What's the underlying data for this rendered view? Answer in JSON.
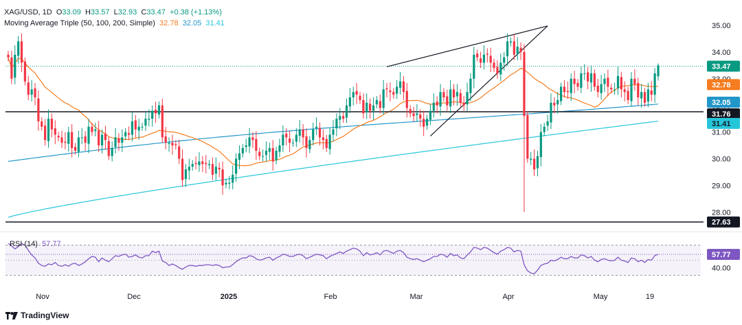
{
  "header": {
    "symbol": "XAG/USD, 1D",
    "o_label": "O",
    "o_val": "33.09",
    "h_label": "H",
    "h_val": "33.57",
    "l_label": "L",
    "l_val": "32.93",
    "c_label": "C",
    "c_val": "33.47",
    "change": "+0.38 (+1.13%)",
    "ma_label": "Moving Average Triple (50, 100, 200, Simple)",
    "ma50_val": "32.78",
    "ma100_val": "32.05",
    "ma200_val": "31.41"
  },
  "rsi_header": {
    "label": "RSI (14)",
    "value": "57.77"
  },
  "branding": {
    "name": "TradingView"
  },
  "colors": {
    "up": "#089981",
    "down": "#f23645",
    "ma50": "#f57c1f",
    "ma100": "#2196c9",
    "ma200": "#26c6da",
    "rsi": "#7e57c2",
    "last_price": "#089981",
    "support": "#131722"
  },
  "chart_data": [
    {
      "type": "candlestick",
      "title": "XAG/USD, 1D",
      "y_ticks": [
        "35.00",
        "34.00",
        "33.00",
        "32.00",
        "31.00",
        "30.00",
        "29.00",
        "28.00"
      ],
      "ylim": [
        27.3,
        35.4
      ],
      "x_ticks": [
        "Nov",
        "Dec",
        "2025",
        "Feb",
        "Mar",
        "Apr",
        "May",
        "19"
      ],
      "price_labels": [
        {
          "text": "33.47",
          "value": 33.47,
          "kind": "last"
        },
        {
          "text": "32.78",
          "value": 32.78,
          "kind": "ma50"
        },
        {
          "text": "32.05",
          "value": 32.05,
          "kind": "ma100"
        },
        {
          "text": "31.76",
          "value": 31.76,
          "kind": "level"
        },
        {
          "text": "31.41",
          "value": 31.41,
          "kind": "ma200"
        },
        {
          "text": "27.63",
          "value": 27.63,
          "kind": "level"
        }
      ],
      "horizontal_levels": [
        31.76,
        27.63
      ],
      "last_price": 33.47,
      "closes": [
        33.8,
        33.0,
        33.9,
        34.4,
        33.6,
        32.9,
        32.4,
        32.6,
        32.3,
        31.4,
        31.2,
        30.7,
        31.5,
        31.1,
        30.9,
        30.8,
        30.6,
        30.6,
        31.0,
        30.4,
        30.3,
        30.8,
        30.8,
        30.6,
        31.2,
        31.0,
        31.1,
        30.5,
        30.9,
        30.7,
        30.1,
        30.4,
        30.8,
        30.6,
        30.8,
        31.0,
        30.9,
        31.4,
        31.1,
        31.2,
        31.2,
        31.5,
        31.5,
        31.8,
        31.7,
        32.0,
        30.8,
        30.6,
        30.6,
        30.5,
        30.5,
        30.0,
        29.2,
        29.6,
        29.7,
        29.8,
        29.8,
        29.9,
        29.8,
        29.8,
        29.8,
        29.4,
        29.7,
        29.6,
        29.0,
        29.1,
        29.1,
        29.4,
        30.0,
        30.2,
        30.4,
        30.5,
        30.8,
        30.7,
        30.3,
        30.1,
        30.1,
        30.3,
        30.4,
        29.9,
        30.3,
        30.5,
        30.9,
        30.8,
        30.6,
        30.6,
        30.9,
        31.1,
        30.8,
        30.4,
        30.7,
        31.1,
        31.2,
        30.8,
        30.7,
        30.4,
        30.9,
        31.1,
        31.5,
        31.6,
        31.5,
        32.0,
        32.3,
        32.5,
        32.4,
        32.2,
        31.7,
        32.1,
        31.8,
        32.0,
        32.2,
        31.9,
        32.6,
        32.6,
        32.5,
        32.4,
        32.7,
        32.9,
        32.5,
        31.9,
        31.7,
        31.6,
        31.7,
        31.5,
        31.2,
        31.5,
        31.8,
        32.1,
        32.0,
        32.5,
        32.3,
        32.0,
        32.6,
        32.3,
        32.5,
        32.1,
        32.0,
        32.5,
        33.0,
        33.9,
        33.8,
        33.6,
        33.9,
        33.9,
        33.6,
        33.4,
        33.2,
        33.6,
        33.8,
        34.4,
        34.4,
        33.9,
        34.2,
        34.0,
        31.6,
        30.0,
        30.0,
        29.6,
        30.1,
        31.0,
        31.2,
        31.4,
        32.1,
        32.0,
        32.2,
        32.7,
        32.5,
        32.5,
        33.0,
        32.8,
        32.7,
        33.2,
        33.2,
        32.9,
        33.2,
        32.7,
        32.5,
        32.8,
        33.0,
        32.7,
        32.6,
        32.6,
        33.1,
        32.6,
        32.5,
        32.2,
        33.0,
        32.8,
        32.3,
        32.5,
        32.1,
        32.6,
        32.4,
        33.2,
        33.5
      ]
    },
    {
      "type": "line",
      "title": "RSI (14)",
      "y_ticks": [
        "40.00"
      ],
      "ylim": [
        25,
        80
      ],
      "upper_band": 70,
      "lower_band": 30,
      "mid_line": 50,
      "last_value": 57.77,
      "price_labels": [
        {
          "text": "57.77",
          "value": 57.77
        }
      ],
      "values": [
        72,
        69,
        65,
        68,
        72,
        70,
        63,
        57,
        53,
        46,
        43,
        42,
        45,
        44,
        47,
        43,
        42,
        44,
        42,
        45,
        46,
        43,
        45,
        48,
        52,
        55,
        54,
        48,
        53,
        50,
        48,
        52,
        56,
        55,
        57,
        58,
        54,
        55,
        57,
        54,
        53,
        56,
        56,
        62,
        60,
        62,
        49,
        47,
        43,
        45,
        43,
        40,
        38,
        41,
        43,
        43,
        42,
        43,
        43,
        44,
        44,
        43,
        44,
        43,
        40,
        41,
        41,
        44,
        48,
        51,
        53,
        53,
        56,
        55,
        52,
        50,
        51,
        53,
        54,
        50,
        53,
        55,
        58,
        57,
        55,
        55,
        57,
        58,
        56,
        52,
        54,
        56,
        58,
        57,
        56,
        52,
        55,
        57,
        59,
        61,
        59,
        62,
        64,
        66,
        65,
        62,
        56,
        60,
        57,
        58,
        60,
        57,
        62,
        63,
        61,
        59,
        62,
        63,
        60,
        54,
        52,
        51,
        52,
        50,
        48,
        50,
        52,
        55,
        55,
        58,
        57,
        54,
        59,
        56,
        57,
        53,
        52,
        57,
        61,
        67,
        66,
        64,
        67,
        66,
        63,
        60,
        58,
        62,
        64,
        67,
        66,
        61,
        63,
        62,
        44,
        36,
        33,
        32,
        37,
        43,
        45,
        46,
        50,
        49,
        51,
        54,
        52,
        52,
        55,
        53,
        53,
        57,
        56,
        53,
        55,
        50,
        48,
        51,
        52,
        50,
        49,
        50,
        54,
        50,
        49,
        47,
        53,
        52,
        48,
        50,
        47,
        51,
        50,
        56,
        58
      ]
    }
  ]
}
